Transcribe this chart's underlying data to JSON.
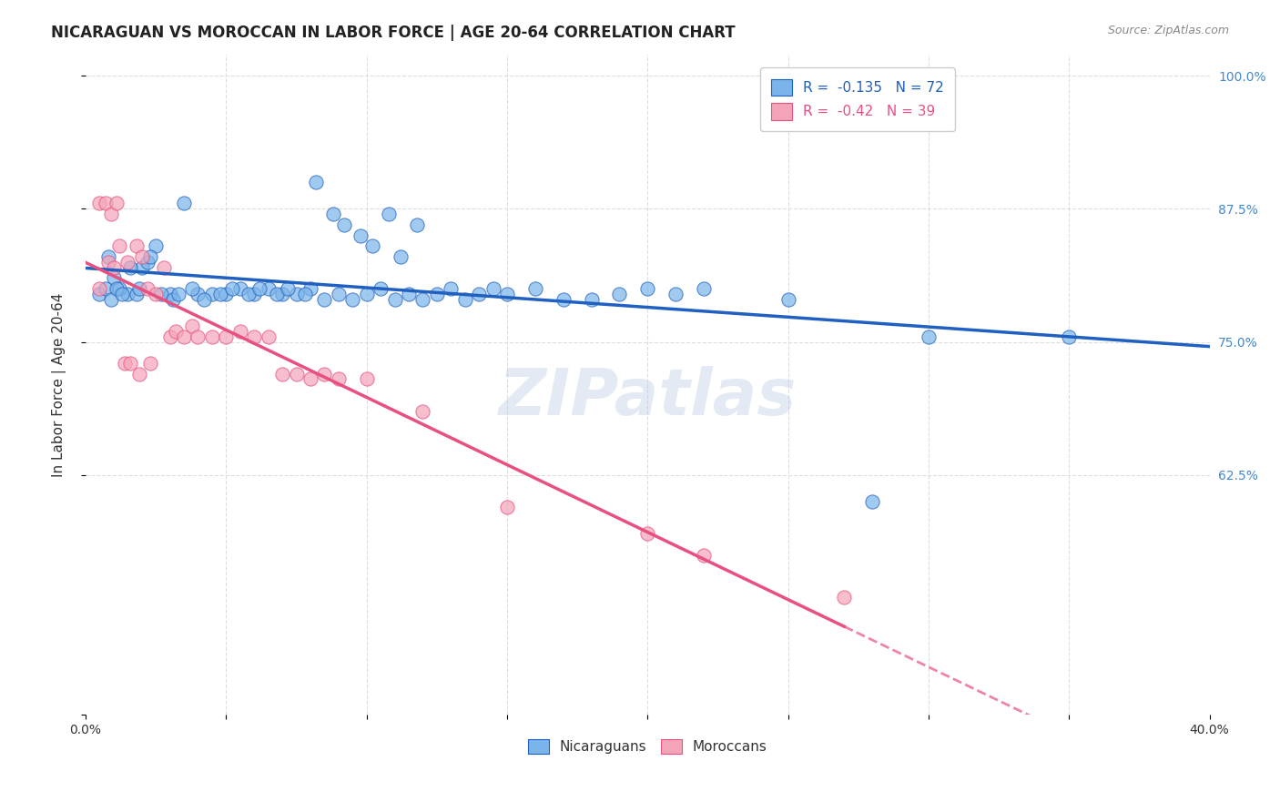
{
  "title": "NICARAGUAN VS MOROCCAN IN LABOR FORCE | AGE 20-64 CORRELATION CHART",
  "source": "Source: ZipAtlas.com",
  "xlabel": "",
  "ylabel": "In Labor Force | Age 20-64",
  "xlim": [
    0.0,
    0.4
  ],
  "ylim": [
    0.4,
    1.02
  ],
  "xticks": [
    0.0,
    0.05,
    0.1,
    0.15,
    0.2,
    0.25,
    0.3,
    0.35,
    0.4
  ],
  "ytick_labels_right": [
    "100.0%",
    "87.5%",
    "75.0%",
    "62.5%",
    ""
  ],
  "ytick_values": [
    1.0,
    0.875,
    0.75,
    0.625,
    0.4
  ],
  "blue_color": "#7ab4ea",
  "pink_color": "#f4a4b8",
  "blue_line_color": "#2060c0",
  "pink_line_color": "#e85080",
  "R_blue": -0.135,
  "N_blue": 72,
  "R_pink": -0.42,
  "N_pink": 39,
  "legend_label_blue": "Nicaraguans",
  "legend_label_pink": "Moroccans",
  "watermark": "ZIPatlas",
  "blue_scatter_x": [
    0.02,
    0.015,
    0.025,
    0.01,
    0.035,
    0.018,
    0.022,
    0.012,
    0.008,
    0.03,
    0.04,
    0.045,
    0.05,
    0.055,
    0.06,
    0.065,
    0.07,
    0.075,
    0.08,
    0.085,
    0.09,
    0.095,
    0.1,
    0.105,
    0.11,
    0.115,
    0.12,
    0.125,
    0.13,
    0.135,
    0.14,
    0.145,
    0.15,
    0.16,
    0.17,
    0.18,
    0.19,
    0.2,
    0.21,
    0.22,
    0.005,
    0.007,
    0.009,
    0.011,
    0.013,
    0.016,
    0.019,
    0.023,
    0.027,
    0.031,
    0.033,
    0.038,
    0.042,
    0.048,
    0.052,
    0.058,
    0.062,
    0.068,
    0.072,
    0.078,
    0.082,
    0.088,
    0.092,
    0.098,
    0.102,
    0.108,
    0.112,
    0.118,
    0.3,
    0.35,
    0.25,
    0.28
  ],
  "blue_scatter_y": [
    0.82,
    0.795,
    0.84,
    0.81,
    0.88,
    0.795,
    0.825,
    0.8,
    0.83,
    0.795,
    0.795,
    0.795,
    0.795,
    0.8,
    0.795,
    0.8,
    0.795,
    0.795,
    0.8,
    0.79,
    0.795,
    0.79,
    0.795,
    0.8,
    0.79,
    0.795,
    0.79,
    0.795,
    0.8,
    0.79,
    0.795,
    0.8,
    0.795,
    0.8,
    0.79,
    0.79,
    0.795,
    0.8,
    0.795,
    0.8,
    0.795,
    0.8,
    0.79,
    0.8,
    0.795,
    0.82,
    0.8,
    0.83,
    0.795,
    0.79,
    0.795,
    0.8,
    0.79,
    0.795,
    0.8,
    0.795,
    0.8,
    0.795,
    0.8,
    0.795,
    0.9,
    0.87,
    0.86,
    0.85,
    0.84,
    0.87,
    0.83,
    0.86,
    0.755,
    0.755,
    0.79,
    0.6
  ],
  "pink_scatter_x": [
    0.005,
    0.008,
    0.01,
    0.012,
    0.015,
    0.018,
    0.02,
    0.022,
    0.025,
    0.028,
    0.03,
    0.032,
    0.035,
    0.038,
    0.04,
    0.045,
    0.05,
    0.055,
    0.06,
    0.065,
    0.07,
    0.075,
    0.08,
    0.085,
    0.09,
    0.1,
    0.12,
    0.15,
    0.2,
    0.22,
    0.005,
    0.007,
    0.009,
    0.011,
    0.014,
    0.016,
    0.019,
    0.023,
    0.27
  ],
  "pink_scatter_y": [
    0.8,
    0.825,
    0.82,
    0.84,
    0.825,
    0.84,
    0.83,
    0.8,
    0.795,
    0.82,
    0.755,
    0.76,
    0.755,
    0.765,
    0.755,
    0.755,
    0.755,
    0.76,
    0.755,
    0.755,
    0.72,
    0.72,
    0.715,
    0.72,
    0.715,
    0.715,
    0.685,
    0.595,
    0.57,
    0.55,
    0.88,
    0.88,
    0.87,
    0.88,
    0.73,
    0.73,
    0.72,
    0.73,
    0.51
  ],
  "background_color": "#ffffff",
  "grid_color": "#dddddd",
  "title_fontsize": 12,
  "axis_label_fontsize": 11,
  "tick_fontsize": 10,
  "right_tick_color": "#4488cc"
}
